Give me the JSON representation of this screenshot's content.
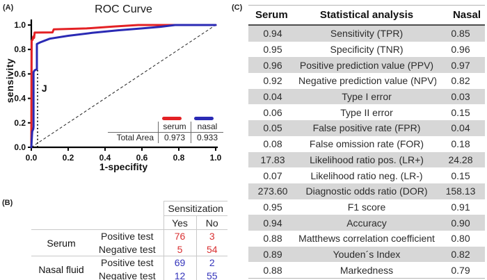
{
  "colors": {
    "serum_line": "#e32124",
    "nasal_line": "#2a2ab4",
    "serum_text": "#d93032",
    "nasal_text": "#3434bb",
    "stripe": "#d7d7d7"
  },
  "panels": {
    "a": {
      "label": "(A)",
      "title": "ROC Curve",
      "xlabel": "1-specifity",
      "ylabel": "sensivity"
    },
    "b": {
      "label": "(B)"
    },
    "c": {
      "label": "(C)"
    }
  },
  "chart_data": [
    {
      "type": "line",
      "name": "roc-curve",
      "title": "ROC Curve",
      "xlabel": "1-specifity",
      "ylabel": "sensivity",
      "xlim": [
        0,
        1
      ],
      "ylim": [
        0,
        1
      ],
      "xticks": [
        "0.0",
        "0.2",
        "0.4",
        "0.6",
        "0.8",
        "1.0"
      ],
      "yticks": [
        "0.0",
        "0.2",
        "0.4",
        "0.6",
        "0.8",
        "1.0"
      ],
      "grid": false,
      "legend_position": "lower right",
      "series": [
        {
          "name": "serum",
          "color": "#e32124",
          "total_area": "0.973",
          "points": [
            [
              0,
              0
            ],
            [
              0.002,
              0.87
            ],
            [
              0.008,
              0.882
            ],
            [
              0.009,
              0.9
            ],
            [
              0.013,
              0.908
            ],
            [
              0.015,
              0.895
            ],
            [
              0.018,
              0.938
            ],
            [
              0.115,
              0.94
            ],
            [
              0.122,
              0.965
            ],
            [
              0.3,
              0.972
            ],
            [
              0.45,
              0.988
            ],
            [
              0.58,
              1.0
            ],
            [
              1,
              1
            ]
          ]
        },
        {
          "name": "nasal",
          "color": "#2a2ab4",
          "total_area": "0.933",
          "points": [
            [
              0,
              0
            ],
            [
              0.005,
              0.13
            ],
            [
              0.011,
              0.15
            ],
            [
              0.012,
              0.17
            ],
            [
              0.012,
              0.615
            ],
            [
              0.018,
              0.63
            ],
            [
              0.03,
              0.638
            ],
            [
              0.03,
              0.845
            ],
            [
              0.048,
              0.858
            ],
            [
              0.1,
              0.888
            ],
            [
              0.2,
              0.912
            ],
            [
              0.33,
              0.936
            ],
            [
              0.47,
              0.957
            ],
            [
              0.6,
              0.972
            ],
            [
              0.7,
              0.985
            ],
            [
              0.78,
              1.0
            ],
            [
              1,
              1
            ]
          ]
        }
      ],
      "reference_line": {
        "style": "dashed",
        "from": [
          0,
          0
        ],
        "to": [
          1,
          1
        ]
      },
      "j_marker": {
        "label": "J",
        "x": 0.034,
        "y_top": 0.64,
        "label_x": 0.056,
        "label_y": 0.455
      },
      "legend_table": {
        "rows": [
          [
            "",
            "serum",
            "nasal"
          ],
          [
            "Total Area",
            "0.973",
            "0.933"
          ]
        ]
      }
    },
    {
      "type": "table",
      "name": "confusion-matrix",
      "col_group_header": "Sensitization",
      "columns": [
        "Yes",
        "No"
      ],
      "row_groups": [
        {
          "label": "Serum",
          "rows": [
            {
              "label": "Positive test",
              "values": [
                "76",
                "3"
              ]
            },
            {
              "label": "Negative test",
              "values": [
                "5",
                "54"
              ]
            }
          ]
        },
        {
          "label": "Nasal fluid",
          "rows": [
            {
              "label": "Positive test",
              "values": [
                "69",
                "2"
              ]
            },
            {
              "label": "Negative test",
              "values": [
                "12",
                "55"
              ]
            }
          ]
        }
      ]
    },
    {
      "type": "table",
      "name": "statistical-analysis",
      "columns": [
        "Serum",
        "Statistical analysis",
        "Nasal"
      ],
      "rows": [
        [
          "0.94",
          "Sensitivity (TPR)",
          "0.85"
        ],
        [
          "0.95",
          "Specificity (TNR)",
          "0.96"
        ],
        [
          "0.96",
          "Positive prediction value (PPV)",
          "0.97"
        ],
        [
          "0.92",
          "Negative prediction value (NPV)",
          "0.82"
        ],
        [
          "0.04",
          "Type I error",
          "0.03"
        ],
        [
          "0.06",
          "Type II error",
          "0.15"
        ],
        [
          "0.05",
          "False positive rate (FPR)",
          "0.04"
        ],
        [
          "0.08",
          "False omission rate (FOR)",
          "0.18"
        ],
        [
          "17.83",
          "Likelihood ratio pos. (LR+)",
          "24.28"
        ],
        [
          "0.07",
          "Likelihood ratio neg. (LR-)",
          "0.15"
        ],
        [
          "273.60",
          "Diagnostic odds ratio (DOR)",
          "158.13"
        ],
        [
          "0.95",
          "F1 score",
          "0.91"
        ],
        [
          "0.94",
          "Accuracy",
          "0.90"
        ],
        [
          "0.88",
          "Matthews correlation coefficient",
          "0.80"
        ],
        [
          "0.89",
          "Youden´s Index",
          "0.82"
        ],
        [
          "0.88",
          "Markedness",
          "0.79"
        ]
      ]
    }
  ]
}
